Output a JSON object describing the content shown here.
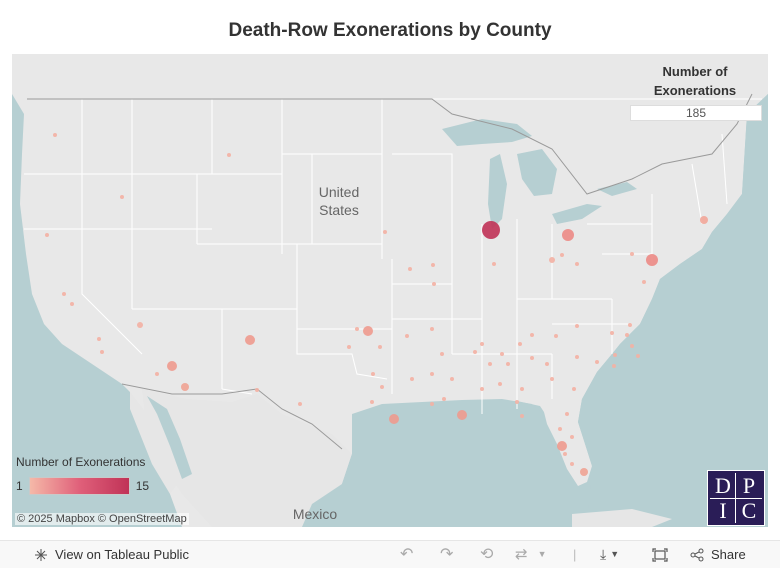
{
  "title": "Death-Row Exonerations by County",
  "filter": {
    "label_line1": "Number of",
    "label_line2": "Exonerations",
    "value": "185"
  },
  "legend": {
    "title": "Number of Exonerations",
    "min": "1",
    "max": "15",
    "color_min": "#f5b9a8",
    "color_max": "#c03257"
  },
  "attribution": {
    "mapbox": "© 2025 Mapbox",
    "osm": "© OpenStreetMap"
  },
  "map_labels": {
    "us_line1": "United",
    "us_line2": "States",
    "mexico": "Mexico"
  },
  "logo": {
    "letters": [
      "D",
      "P",
      "I",
      "C"
    ]
  },
  "toolbar": {
    "view_label": "View on Tableau Public",
    "share_label": "Share"
  },
  "colors": {
    "water": "#b6cfd2",
    "land": "#e8e8e8",
    "border": "#ffffff"
  }
}
